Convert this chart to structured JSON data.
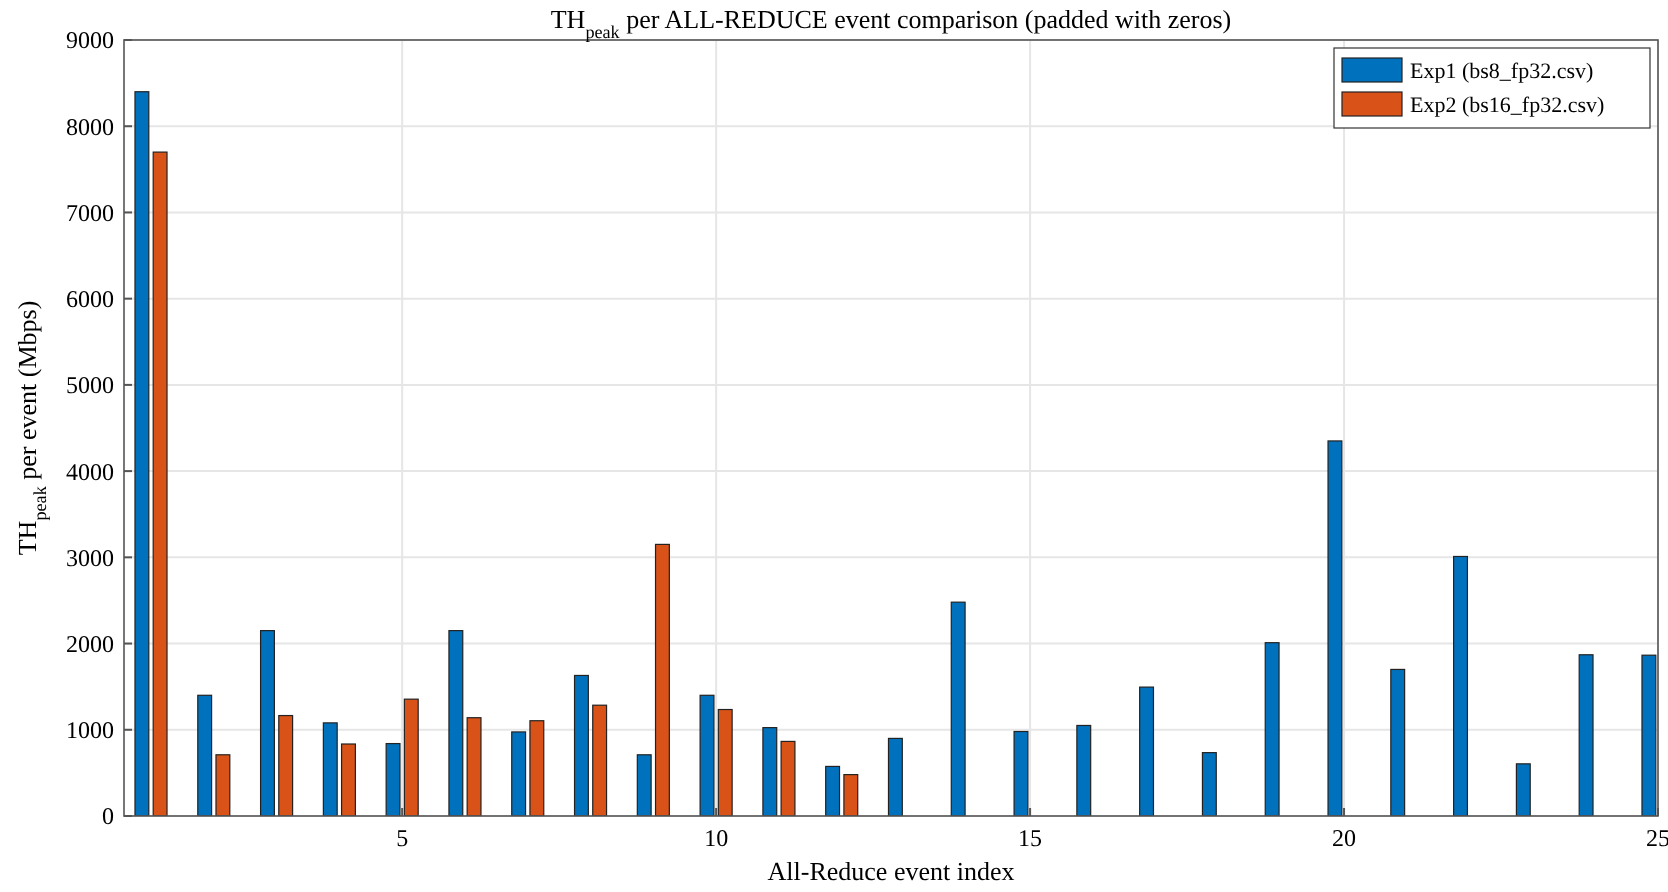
{
  "chart_data": {
    "type": "bar",
    "title": "TH$_{peak}$ per ALL-REDUCE event comparison (padded with zeros)",
    "xlabel": "All-Reduce event index",
    "ylabel": "TH$_{peak}$ per event (Mbps)",
    "x": [
      1,
      2,
      3,
      4,
      5,
      6,
      7,
      8,
      9,
      10,
      11,
      12,
      13,
      14,
      15,
      16,
      17,
      18,
      19,
      20,
      21,
      22,
      23,
      24,
      25
    ],
    "series": [
      {
        "name": "Exp1 (bs8_fp32.csv)",
        "color": "#0072bd",
        "values": [
          8400,
          1400,
          2150,
          1080,
          840,
          2150,
          975,
          1630,
          710,
          1400,
          1025,
          575,
          900,
          2480,
          980,
          1050,
          1495,
          735,
          2010,
          4350,
          1700,
          3010,
          605,
          1870,
          1865
        ]
      },
      {
        "name": "Exp2 (bs16_fp32.csv)",
        "color": "#d95319",
        "values": [
          7700,
          710,
          1165,
          835,
          1355,
          1140,
          1105,
          1285,
          3150,
          1235,
          865,
          480,
          0,
          0,
          0,
          0,
          0,
          0,
          0,
          0,
          0,
          0,
          0,
          0,
          0
        ]
      }
    ],
    "xlim": [
      0.57,
      25
    ],
    "xticks": [
      5,
      10,
      15,
      20,
      25
    ],
    "ylim": [
      0,
      9000
    ],
    "yticks": [
      0,
      1000,
      2000,
      3000,
      4000,
      5000,
      6000,
      7000,
      8000,
      9000
    ],
    "grid": true,
    "legend": "top right"
  }
}
